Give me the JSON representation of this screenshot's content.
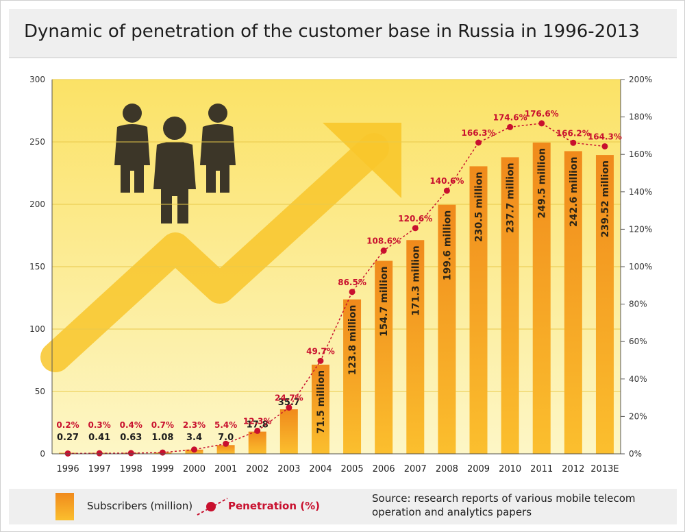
{
  "title": "Dynamic of penetration of the customer base in Russia in 1996-2013",
  "chart_data": {
    "type": "bar",
    "categories": [
      "1996",
      "1997",
      "1998",
      "1999",
      "2000",
      "2001",
      "2002",
      "2003",
      "2004",
      "2005",
      "2006",
      "2007",
      "2008",
      "2009",
      "2010",
      "2011",
      "2012",
      "2013E"
    ],
    "series": [
      {
        "name": "Subscribers (million)",
        "type": "bar",
        "axis": "left",
        "values": [
          0.27,
          0.41,
          0.63,
          1.08,
          3.4,
          7.0,
          17.8,
          35.7,
          71.5,
          123.8,
          154.7,
          171.3,
          199.6,
          230.5,
          237.7,
          249.5,
          242.6,
          239.52
        ],
        "labels": [
          "0.27",
          "0.41",
          "0.63",
          "1.08",
          "3.4",
          "7.0",
          "17.8",
          "35.7",
          "71.5 million",
          "123.8 million",
          "154.7 million",
          "171.3 million",
          "199.6 million",
          "230.5 million",
          "237.7 million",
          "249.5 million",
          "242.6 million",
          "239.52 million"
        ]
      },
      {
        "name": "Penetration (%)",
        "type": "line",
        "axis": "right",
        "values": [
          0.2,
          0.3,
          0.4,
          0.7,
          2.3,
          5.4,
          12.3,
          24.7,
          49.7,
          86.5,
          108.6,
          120.6,
          140.6,
          166.3,
          174.6,
          176.6,
          166.2,
          164.3
        ],
        "labels": [
          "0.2%",
          "0.3%",
          "0.4%",
          "0.7%",
          "2.3%",
          "5.4%",
          "12.3%",
          "24.7%",
          "49.7%",
          "86.5%",
          "108.6%",
          "120.6%",
          "140.6%",
          "166.3%",
          "174.6%",
          "176.6%",
          "166.2%",
          "164.3%"
        ]
      }
    ],
    "y_left": {
      "ylim": [
        0,
        300
      ],
      "ticks": [
        "0",
        "50",
        "100",
        "150",
        "200",
        "250",
        "300"
      ]
    },
    "y_right": {
      "ylim": [
        0,
        200
      ],
      "ticks": [
        "0%",
        "20%",
        "40%",
        "60%",
        "80%",
        "100%",
        "120%",
        "140%",
        "160%",
        "180%",
        "200%"
      ]
    },
    "grid": true,
    "legend_position": "bottom",
    "colors": {
      "bar_top": "#f08a1c",
      "bar_bottom": "#fbbf2e",
      "line": "#c8102e",
      "background_top": "#fbe266",
      "background_bottom": "#fdf6c6",
      "arrow": "#f8c62b",
      "people": "#3c3628"
    }
  },
  "legend": {
    "bar_label": "Subscribers (million)",
    "line_label": "Penetration (%)"
  },
  "source": "Source: research reports of various mobile telecom operation and analytics papers"
}
